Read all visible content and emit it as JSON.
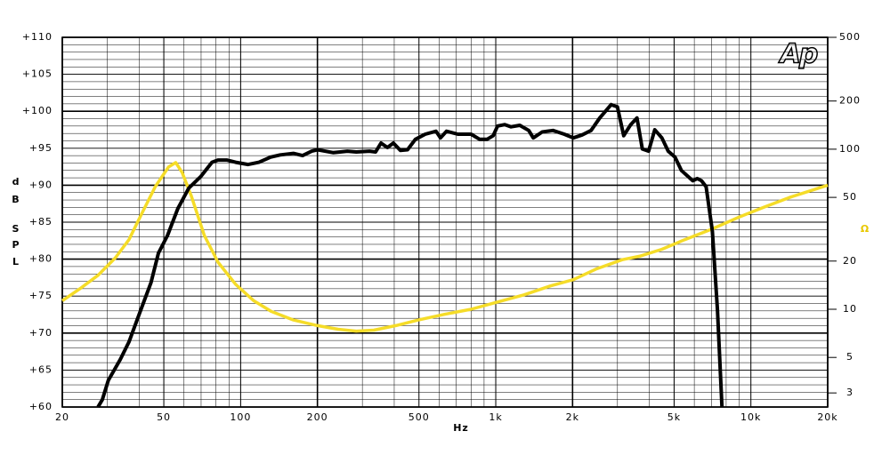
{
  "chart_data": {
    "type": "line",
    "x_label": "Hz",
    "y_label": [
      "d",
      "B",
      "S",
      "P",
      "L"
    ],
    "y2_label": "Ω",
    "logo": "Ap",
    "xscale": "log",
    "y2scale": "log",
    "grid": true,
    "xlim": [
      20,
      20000
    ],
    "ylim": [
      60,
      110
    ],
    "y2lim": [
      2.45,
      500
    ],
    "xticks": [
      20,
      50,
      100,
      200,
      500,
      {
        "value": 1000,
        "label": "1k"
      },
      {
        "value": 2000,
        "label": "2k"
      },
      {
        "value": 5000,
        "label": "5k"
      },
      {
        "value": 10000,
        "label": "10k"
      },
      {
        "value": 20000,
        "label": "20k"
      }
    ],
    "yticks": [
      {
        "value": 60,
        "label": "+60"
      },
      {
        "value": 65,
        "label": "+65"
      },
      {
        "value": 70,
        "label": "+70"
      },
      {
        "value": 75,
        "label": "+75"
      },
      {
        "value": 80,
        "label": "+80"
      },
      {
        "value": 85,
        "label": "+85"
      },
      {
        "value": 90,
        "label": "+90"
      },
      {
        "value": 95,
        "label": "+95"
      },
      {
        "value": 100,
        "label": "+100"
      },
      {
        "value": 105,
        "label": "+105"
      },
      {
        "value": 110,
        "label": "+110"
      }
    ],
    "y2ticks": [
      3,
      5,
      10,
      20,
      50,
      100,
      200,
      500
    ],
    "series": [
      {
        "name": "SPL",
        "color": "#000000",
        "x": [
          27.6,
          28.7,
          30.3,
          33.7,
          36.5,
          40.5,
          44.5,
          47.6,
          51.7,
          56.7,
          62.6,
          69.9,
          77.2,
          81.5,
          88.2,
          95.6,
          107,
          118,
          131,
          143,
          161,
          175,
          190,
          200,
          231,
          262,
          284,
          320,
          338,
          355,
          376,
          397,
          423,
          451,
          484,
          529,
          583,
          607,
          641,
          710,
          800,
          865,
          924,
          977,
          1017,
          1085,
          1148,
          1242,
          1347,
          1403,
          1520,
          1675,
          1855,
          2014,
          2181,
          2363,
          2557,
          2834,
          2998,
          3173,
          3380,
          3578,
          3753,
          3972,
          4200,
          4480,
          4743,
          5040,
          5340,
          5917,
          6160,
          6404,
          6675,
          7060,
          7400,
          7700
        ],
        "values": [
          60,
          61,
          63.6,
          66.4,
          68.8,
          73,
          76.8,
          80.8,
          83.2,
          86.8,
          89.6,
          91.2,
          93.1,
          93.4,
          93.4,
          93.1,
          92.8,
          93.1,
          93.8,
          94.1,
          94.3,
          94,
          94.6,
          94.8,
          94.4,
          94.6,
          94.5,
          94.6,
          94.5,
          95.7,
          95.1,
          95.7,
          94.7,
          94.8,
          96.2,
          96.9,
          97.3,
          96.4,
          97.3,
          96.9,
          96.9,
          96.2,
          96.2,
          96.7,
          98,
          98.2,
          97.9,
          98.1,
          97.4,
          96.4,
          97.2,
          97.4,
          96.9,
          96.4,
          96.8,
          97.4,
          99.1,
          100.9,
          100.6,
          96.7,
          98.2,
          99.1,
          94.9,
          94.6,
          97.5,
          96.4,
          94.6,
          93.8,
          92,
          90.6,
          90.9,
          90.6,
          89.8,
          83.8,
          73,
          60
        ]
      },
      {
        "name": "Impedance",
        "color": "#f5dc28",
        "axis": "y2",
        "x": [
          20,
          23.4,
          27.6,
          32.3,
          36.5,
          41,
          46.3,
          52.2,
          55.7,
          59,
          64,
          72.1,
          81.5,
          95.6,
          112.6,
          131.8,
          161,
          200,
          241,
          284,
          333,
          406,
          497,
          630,
          800,
          1017,
          1290,
          1640,
          2014,
          2465,
          3135,
          3690,
          4480,
          5500,
          7000,
          8900,
          11200,
          14200,
          20000
        ],
        "values": [
          11.3,
          13.4,
          16.3,
          21,
          27.2,
          39.7,
          58.4,
          77.4,
          82.5,
          71.4,
          51.3,
          28.9,
          19.7,
          14.3,
          11.3,
          9.7,
          8.56,
          7.9,
          7.5,
          7.3,
          7.4,
          7.9,
          8.56,
          9.3,
          10,
          11.1,
          12.3,
          14,
          15.3,
          17.8,
          20.4,
          21.5,
          23.7,
          27.2,
          31.6,
          37.4,
          43.3,
          50,
          59.6
        ]
      }
    ]
  }
}
